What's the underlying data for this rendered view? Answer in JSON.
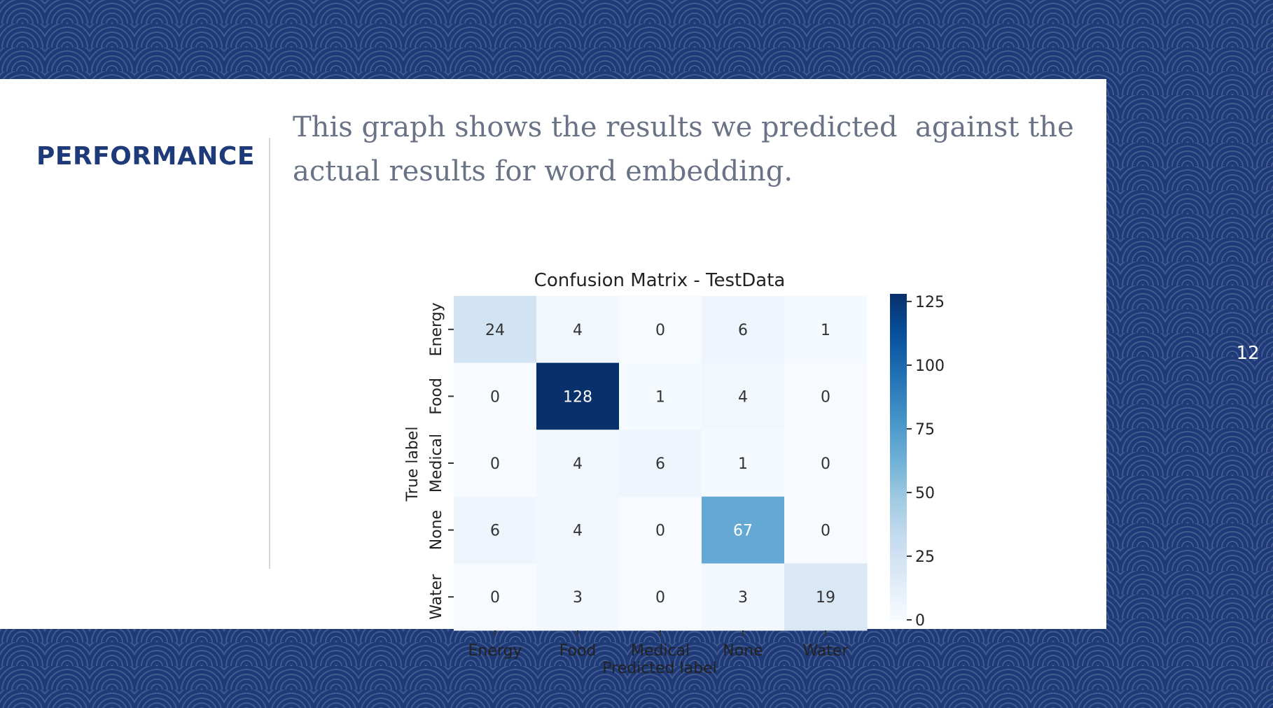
{
  "slide": {
    "section_title": "PERFORMANCE",
    "description": "This graph shows the results we predicted  against the actual results for word embedding.",
    "page_number": "12"
  },
  "colors": {
    "background": "#1f3a78",
    "title": "#1f3a78",
    "body_text": "#6a7386",
    "cmap_low": "#f7fbff",
    "cmap_high": "#08306b"
  },
  "chart_data": {
    "type": "heatmap",
    "title": "Confusion Matrix - TestData",
    "xlabel": "Predicted label",
    "ylabel": "True label",
    "x_categories": [
      "Energy",
      "Food",
      "Medical",
      "None",
      "Water"
    ],
    "y_categories": [
      "Energy",
      "Food",
      "Medical",
      "None",
      "Water"
    ],
    "values": [
      [
        24,
        4,
        0,
        6,
        1
      ],
      [
        0,
        128,
        1,
        4,
        0
      ],
      [
        0,
        4,
        6,
        1,
        0
      ],
      [
        6,
        4,
        0,
        67,
        0
      ],
      [
        0,
        3,
        0,
        3,
        19
      ]
    ],
    "colorbar": {
      "range": [
        0,
        128
      ],
      "ticks": [
        0,
        25,
        50,
        75,
        100,
        125
      ]
    }
  }
}
